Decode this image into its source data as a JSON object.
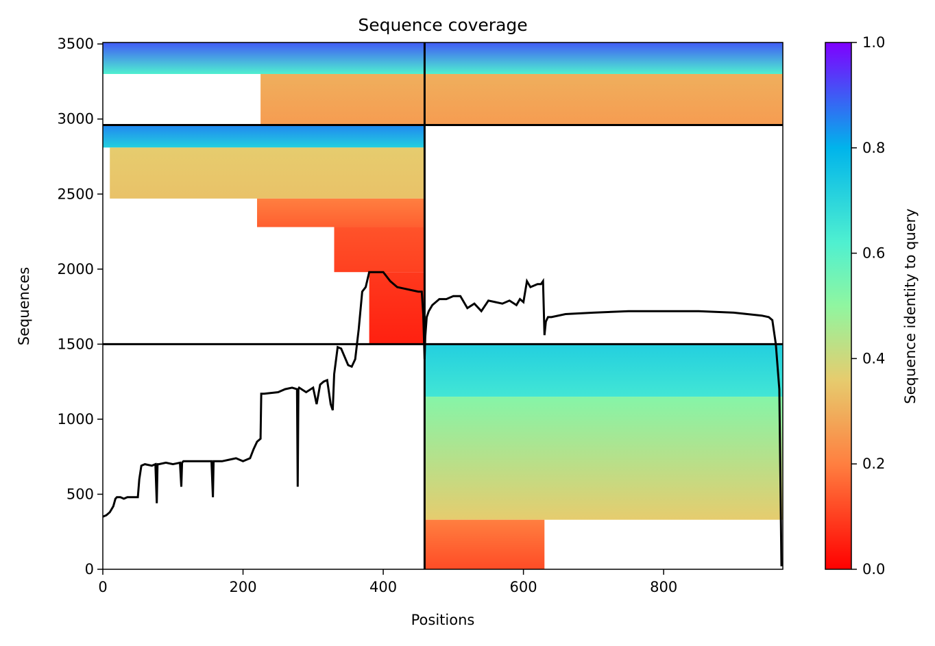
{
  "chart_data": {
    "type": "heatmap",
    "title": "Sequence coverage",
    "xlabel": "Positions",
    "ylabel": "Sequences",
    "xlim": [
      0,
      970
    ],
    "ylim": [
      0,
      3510
    ],
    "xticks": [
      0,
      200,
      400,
      600,
      800
    ],
    "yticks": [
      0,
      500,
      1000,
      1500,
      2000,
      2500,
      3000,
      3500
    ],
    "grid": false,
    "colorbar": {
      "label": "Sequence identity to query",
      "range": [
        0,
        1
      ],
      "ticks": [
        0.0,
        0.2,
        0.4,
        0.6,
        0.8,
        1.0
      ],
      "colormap": "rainbow_r",
      "colors": [
        "#ff0000",
        "#ff7f40",
        "#e6cc6e",
        "#7fffd4",
        "#00b4eb",
        "#7f00ff"
      ]
    },
    "chain_boundaries": {
      "x": [
        459
      ],
      "y": [
        1500,
        2960
      ]
    },
    "coverage_blocks": [
      {
        "x0": 0,
        "x1": 459,
        "y0": 3300,
        "y1": 3510,
        "identity_top": 0.9,
        "identity_bottom": 0.62
      },
      {
        "x0": 225,
        "x1": 459,
        "y0": 2960,
        "y1": 3300,
        "identity_top": 0.3,
        "identity_bottom": 0.26
      },
      {
        "x0": 459,
        "x1": 970,
        "y0": 3300,
        "y1": 3510,
        "identity_top": 0.9,
        "identity_bottom": 0.62
      },
      {
        "x0": 459,
        "x1": 970,
        "y0": 2960,
        "y1": 3300,
        "identity_top": 0.3,
        "identity_bottom": 0.26
      },
      {
        "x0": 0,
        "x1": 459,
        "y0": 2810,
        "y1": 2960,
        "identity_top": 0.85,
        "identity_bottom": 0.72
      },
      {
        "x0": 10,
        "x1": 459,
        "y0": 2470,
        "y1": 2810,
        "identity_top": 0.36,
        "identity_bottom": 0.34
      },
      {
        "x0": 220,
        "x1": 459,
        "y0": 2280,
        "y1": 2470,
        "identity_top": 0.2,
        "identity_bottom": 0.15
      },
      {
        "x0": 330,
        "x1": 459,
        "y0": 1980,
        "y1": 2280,
        "identity_top": 0.13,
        "identity_bottom": 0.1
      },
      {
        "x0": 380,
        "x1": 459,
        "y0": 1500,
        "y1": 1980,
        "identity_top": 0.09,
        "identity_bottom": 0.05
      },
      {
        "x0": 459,
        "x1": 970,
        "y0": 1150,
        "y1": 1500,
        "identity_top": 0.72,
        "identity_bottom": 0.65
      },
      {
        "x0": 459,
        "x1": 970,
        "y0": 330,
        "y1": 1150,
        "identity_top": 0.52,
        "identity_bottom": 0.36
      },
      {
        "x0": 459,
        "x1": 630,
        "y0": 0,
        "y1": 330,
        "identity_top": 0.2,
        "identity_bottom": 0.12
      }
    ],
    "coverage_line": {
      "x": [
        0,
        5,
        10,
        15,
        18,
        20,
        25,
        30,
        35,
        40,
        50,
        52,
        55,
        60,
        70,
        75,
        77,
        78,
        80,
        90,
        100,
        110,
        112,
        113,
        115,
        130,
        150,
        155,
        157,
        158,
        160,
        170,
        180,
        190,
        200,
        210,
        215,
        220,
        225,
        226,
        230,
        250,
        260,
        270,
        277,
        278,
        279,
        280,
        290,
        300,
        305,
        310,
        315,
        320,
        325,
        328,
        330,
        335,
        340,
        350,
        355,
        360,
        365,
        370,
        375,
        380,
        390,
        400,
        410,
        420,
        430,
        440,
        450,
        455,
        457,
        459,
        460,
        462,
        465,
        470,
        480,
        490,
        500,
        510,
        520,
        530,
        540,
        550,
        560,
        570,
        580,
        590,
        595,
        600,
        605,
        610,
        620,
        625,
        628,
        630,
        632,
        635,
        640,
        660,
        700,
        750,
        800,
        850,
        900,
        940,
        950,
        955,
        960,
        965,
        968
      ],
      "y": [
        350,
        360,
        380,
        420,
        470,
        480,
        480,
        470,
        480,
        480,
        480,
        600,
        690,
        700,
        690,
        700,
        440,
        700,
        700,
        710,
        700,
        710,
        550,
        710,
        720,
        720,
        720,
        720,
        480,
        720,
        720,
        720,
        730,
        740,
        720,
        740,
        800,
        850,
        870,
        1170,
        1170,
        1180,
        1200,
        1210,
        1200,
        550,
        1200,
        1210,
        1180,
        1210,
        1100,
        1230,
        1250,
        1260,
        1100,
        1060,
        1300,
        1480,
        1470,
        1360,
        1350,
        1400,
        1600,
        1850,
        1880,
        1980,
        1980,
        1980,
        1920,
        1880,
        1870,
        1860,
        1850,
        1850,
        1700,
        1400,
        1550,
        1680,
        1720,
        1760,
        1800,
        1800,
        1820,
        1820,
        1740,
        1770,
        1720,
        1790,
        1780,
        1770,
        1790,
        1760,
        1800,
        1780,
        1920,
        1880,
        1900,
        1900,
        1920,
        1560,
        1650,
        1680,
        1680,
        1700,
        1710,
        1720,
        1720,
        1720,
        1710,
        1690,
        1680,
        1660,
        1500,
        1200,
        20
      ]
    }
  }
}
